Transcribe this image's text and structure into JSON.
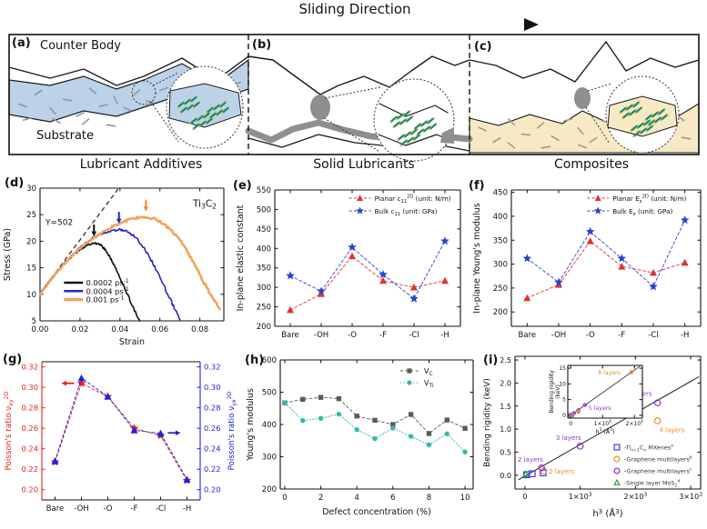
{
  "figure": {
    "panel_labels": {
      "d": "(d)",
      "e": "(e)",
      "f": "(f)",
      "g": "(g)",
      "h": "(h)",
      "i": "(i)"
    }
  },
  "schematic": {
    "sliding_direction": "Sliding Direction",
    "counter_body": "Counter Body",
    "substrate": "Substrate",
    "panels": [
      {
        "label": "(a)",
        "caption": "Lubricant Additives"
      },
      {
        "label": "(b)",
        "caption": "Solid Lubricants"
      },
      {
        "label": "(c)",
        "caption": "Composites"
      }
    ],
    "colors": {
      "lubricant_fill": "#bcd2e8",
      "composite_fill": "#f6e9c4",
      "film_gray": "#8f8f8f",
      "particle_teal": "#1f8a78",
      "particle_yellow": "#e6c84a",
      "outline": "#1a1a1a"
    }
  },
  "chart_data": [
    {
      "panel": "d",
      "type": "line",
      "title_annotation": "Ti_{3}C_{2}",
      "slope_annotation": "Y=502",
      "xlabel": "Strain",
      "ylabel": "Stress (GPa)",
      "xlim": [
        0,
        0.092
      ],
      "ylim": [
        5,
        30
      ],
      "xticks": [
        0,
        0.02,
        0.04,
        0.06,
        0.08
      ],
      "xtick_labels": [
        "0.00",
        "0.02",
        "0.04",
        "0.06",
        "0.08"
      ],
      "yticks": [
        5,
        10,
        15,
        20,
        25,
        30
      ],
      "fit_line": {
        "x1": 0.003,
        "y1": 11.7,
        "x2": 0.039,
        "y2": 29.8
      },
      "arrows": [
        {
          "x": 0.027,
          "y_tip": 20.9,
          "color": "#111111"
        },
        {
          "x": 0.0395,
          "y_tip": 23.3,
          "color": "#2525c8"
        },
        {
          "x": 0.053,
          "y_tip": 25.6,
          "color": "#f08c28"
        }
      ],
      "series": [
        {
          "name": "0.0002 ps^{-1}",
          "color": "#111111",
          "width": 1.6,
          "noise": 0.18,
          "points": [
            [
              0,
              10.2
            ],
            [
              0.004,
              12.0
            ],
            [
              0.008,
              13.9
            ],
            [
              0.012,
              15.6
            ],
            [
              0.016,
              17.2
            ],
            [
              0.02,
              18.4
            ],
            [
              0.024,
              19.3
            ],
            [
              0.027,
              19.7
            ],
            [
              0.03,
              19.4
            ],
            [
              0.033,
              18.3
            ],
            [
              0.036,
              16.3
            ],
            [
              0.04,
              13.2
            ],
            [
              0.044,
              9.8
            ],
            [
              0.048,
              6.3
            ],
            [
              0.05,
              5.0
            ]
          ]
        },
        {
          "name": "0.0004 ps^{-1}",
          "color": "#2525c8",
          "width": 1.6,
          "noise": 0.22,
          "points": [
            [
              0,
              10.2
            ],
            [
              0.004,
              12.2
            ],
            [
              0.008,
              14.1
            ],
            [
              0.012,
              15.8
            ],
            [
              0.016,
              17.4
            ],
            [
              0.02,
              18.8
            ],
            [
              0.025,
              20.3
            ],
            [
              0.03,
              21.3
            ],
            [
              0.035,
              21.9
            ],
            [
              0.04,
              22.2
            ],
            [
              0.044,
              21.8
            ],
            [
              0.048,
              20.7
            ],
            [
              0.052,
              18.8
            ],
            [
              0.056,
              16.2
            ],
            [
              0.06,
              13.2
            ],
            [
              0.064,
              10.0
            ],
            [
              0.068,
              6.8
            ],
            [
              0.07,
              5.2
            ]
          ]
        },
        {
          "name": "0.001 ps^{-1}",
          "color": "#f2a45a",
          "width": 2.6,
          "noise": 0.26,
          "points": [
            [
              0,
              10.0
            ],
            [
              0.004,
              12.0
            ],
            [
              0.008,
              13.9
            ],
            [
              0.012,
              15.7
            ],
            [
              0.016,
              17.3
            ],
            [
              0.02,
              18.7
            ],
            [
              0.025,
              20.1
            ],
            [
              0.03,
              21.4
            ],
            [
              0.035,
              22.5
            ],
            [
              0.04,
              23.4
            ],
            [
              0.045,
              24.1
            ],
            [
              0.05,
              24.5
            ],
            [
              0.054,
              24.5
            ],
            [
              0.058,
              24.1
            ],
            [
              0.062,
              23.3
            ],
            [
              0.066,
              22.0
            ],
            [
              0.07,
              20.2
            ],
            [
              0.074,
              17.9
            ],
            [
              0.078,
              15.2
            ],
            [
              0.082,
              12.3
            ],
            [
              0.086,
              9.5
            ],
            [
              0.09,
              7.2
            ]
          ]
        }
      ]
    },
    {
      "panel": "e",
      "type": "category-line",
      "ylabel": "In-plane elastic constant",
      "categories": [
        "Bare",
        "-OH",
        "-O",
        "-F",
        "-Cl",
        "-H"
      ],
      "ylim": [
        200,
        550
      ],
      "yticks": [
        200,
        250,
        300,
        350,
        400,
        450,
        500,
        550
      ],
      "series": [
        {
          "name": "Planar c_{11}^{2D} (unit: N/m)",
          "color": "#e03232",
          "marker": "triangle",
          "values": [
            242,
            283,
            380,
            317,
            300,
            317
          ]
        },
        {
          "name": "Bulk c_{11} (unit: GPa)",
          "color": "#2743cd",
          "marker": "star",
          "values": [
            330,
            290,
            403,
            333,
            271,
            419
          ]
        }
      ]
    },
    {
      "panel": "f",
      "type": "category-line",
      "ylabel": "In-plane Young's modulus",
      "categories": [
        "Bare",
        "-OH",
        "-O",
        "-F",
        "-Cl",
        "-H"
      ],
      "ylim": [
        170,
        455
      ],
      "yticks": [
        200,
        250,
        300,
        350,
        400,
        450
      ],
      "series": [
        {
          "name": "Planar E_{x}^{2D} (unit: N/m)",
          "color": "#e03232",
          "marker": "triangle",
          "values": [
            229,
            257,
            348,
            295,
            282,
            303
          ]
        },
        {
          "name": "Bulk E_{x} (unit: GPa)",
          "color": "#2743cd",
          "marker": "star",
          "values": [
            312,
            262,
            368,
            312,
            253,
            392
          ]
        }
      ]
    },
    {
      "panel": "g",
      "type": "dual-category-line",
      "categories": [
        "Bare",
        "-OH",
        "-O",
        "-F",
        "-Cl",
        "-H"
      ],
      "ylim": [
        0.19,
        0.325
      ],
      "yticks": [
        0.2,
        0.22,
        0.24,
        0.26,
        0.28,
        0.3,
        0.32
      ],
      "ytick_labels": [
        "0.20",
        "0.22",
        "0.24",
        "0.26",
        "0.28",
        "0.30",
        "0.32"
      ],
      "left": {
        "label": "Poisson's ratio ν_{xy}^{2D}",
        "color": "#e02020",
        "marker": "star",
        "values": [
          0.227,
          0.304,
          0.291,
          0.26,
          0.253,
          0.209
        ]
      },
      "right": {
        "label": "Poisson's ratio ν_{yx}^{2D}",
        "color": "#2020dd",
        "marker": "triangle",
        "values": [
          0.228,
          0.309,
          0.291,
          0.258,
          0.255,
          0.21
        ]
      },
      "arrows": [
        {
          "dir": "left",
          "cat": 1,
          "y": 0.304,
          "color": "#e02020"
        },
        {
          "dir": "right",
          "cat": 4,
          "y": 0.2555,
          "color": "#2020dd"
        }
      ]
    },
    {
      "panel": "h",
      "type": "line",
      "xlabel": "Defect concentration (%)",
      "ylabel": "Young's modulus",
      "xlim": [
        -0.25,
        10.45
      ],
      "ylim": [
        200,
        600
      ],
      "xticks": [
        0,
        2,
        4,
        6,
        8,
        10
      ],
      "yticks": [
        200,
        300,
        400,
        500,
        600
      ],
      "x": [
        0,
        1,
        2,
        3,
        4,
        5,
        6,
        7,
        8,
        9,
        10
      ],
      "series": [
        {
          "name": "V_{C}",
          "color": "#5a5a5a",
          "marker": "square",
          "dash": "3,2.5",
          "values": [
            467,
            478,
            484,
            480,
            426,
            413,
            400,
            431,
            372,
            414,
            388
          ]
        },
        {
          "name": "V_{Ti}",
          "color": "#35b9ab",
          "marker": "circle",
          "dash": "1.5,2",
          "values": [
            467,
            412,
            419,
            432,
            384,
            356,
            389,
            363,
            337,
            371,
            315
          ]
        }
      ]
    },
    {
      "panel": "i",
      "type": "scatter",
      "xlabel": "h^{3} (Å^{3})",
      "ylabel": "Bending rigidity (keV)",
      "xlim": [
        -180,
        3180
      ],
      "ylim": [
        -0.3,
        2.58
      ],
      "xticks": [
        0,
        1000,
        2000,
        3000
      ],
      "xtick_labels": [
        "0",
        "1×10^{3}",
        "2×10^{3}",
        "3×10^{3}"
      ],
      "yticks": [
        0,
        0.5,
        1,
        1.5,
        2,
        2.5
      ],
      "ytick_labels": [
        "0.0",
        "0.5",
        "1.0",
        "1.5",
        "2.0",
        "2.5"
      ],
      "fit_line": {
        "slope": 0.000685,
        "intercept": -0.02,
        "x1": -120,
        "x2": 3150
      },
      "series": [
        {
          "name": "-Ti_{n+1}C_{n} MXenes^{a}",
          "color": "#3939e8",
          "marker": "square",
          "open": true,
          "points": [
            [
              30,
              0.01
            ],
            [
              130,
              0.03
            ],
            [
              330,
              0.05
            ]
          ]
        },
        {
          "name": "-Graphene multilayers^{b}",
          "color": "#f08a28",
          "marker": "circle",
          "open": true,
          "points": [
            [
              340,
              0.09
            ],
            [
              2400,
              1.18
            ]
          ]
        },
        {
          "name": "-Graphene multilayers^{c}",
          "color": "#8a35d6",
          "marker": "circle",
          "open": true,
          "points": [
            [
              300,
              0.16
            ],
            [
              1000,
              0.63
            ],
            [
              2400,
              1.57
            ]
          ]
        },
        {
          "name": "-Single layer MoS_{2}^{d}",
          "color": "#2a9d45",
          "marker": "triangle",
          "open": true,
          "points": [
            [
              15,
              0.02
            ]
          ]
        }
      ],
      "annotations": [
        {
          "text": "2 layers",
          "color": "#8a35d6",
          "x": -130,
          "y": 0.33
        },
        {
          "text": "2 layers",
          "color": "#f08a28",
          "x": 430,
          "y": 0.07
        },
        {
          "text": "3 layers",
          "color": "#8a35d6",
          "x": 560,
          "y": 0.8
        },
        {
          "text": "4 layers",
          "color": "#8a35d6",
          "x": 1840,
          "y": 1.76
        },
        {
          "text": "4 layers",
          "color": "#f08a28",
          "x": 2430,
          "y": 0.97
        }
      ],
      "inset": {
        "xlabel": "h^{3} (Å^{3})",
        "ylabel_lines": [
          "Bending rigidity",
          "(keV)"
        ],
        "xlim": [
          -900,
          22500
        ],
        "ylim": [
          -0.9,
          15.9
        ],
        "xticks": [
          0,
          10000,
          20000
        ],
        "xtick_labels": [
          "0",
          "1×10^{4}",
          "2×10^{4}"
        ],
        "yticks": [
          0,
          5,
          10,
          15
        ],
        "fit_line": {
          "slope": 0.00072,
          "intercept": 0,
          "x1": -300,
          "x2": 21800
        },
        "series": [
          {
            "color": "#3939e8",
            "marker": "square",
            "points": [
              [
                30,
                0.01
              ],
              [
                130,
                0.03
              ],
              [
                330,
                0.05
              ]
            ]
          },
          {
            "color": "#2a9d45",
            "marker": "triangle",
            "points": [
              [
                15,
                0.02
              ]
            ]
          },
          {
            "color": "#8a35d6",
            "marker": "circle",
            "points": [
              [
                300,
                0.16
              ],
              [
                1000,
                0.63
              ],
              [
                2400,
                1.57
              ],
              [
                4500,
                3.3
              ]
            ]
          },
          {
            "color": "#f08a28",
            "marker": "circle",
            "points": [
              [
                340,
                0.09
              ],
              [
                2400,
                1.18
              ],
              [
                19000,
                13.7
              ]
            ]
          }
        ],
        "annotations": [
          {
            "text": "5 layers",
            "color": "#8a35d6",
            "x": 5600,
            "y": 2.3
          },
          {
            "text": "8 layers",
            "color": "#f08a28",
            "x": 8600,
            "y": 13.6
          }
        ]
      }
    }
  ]
}
